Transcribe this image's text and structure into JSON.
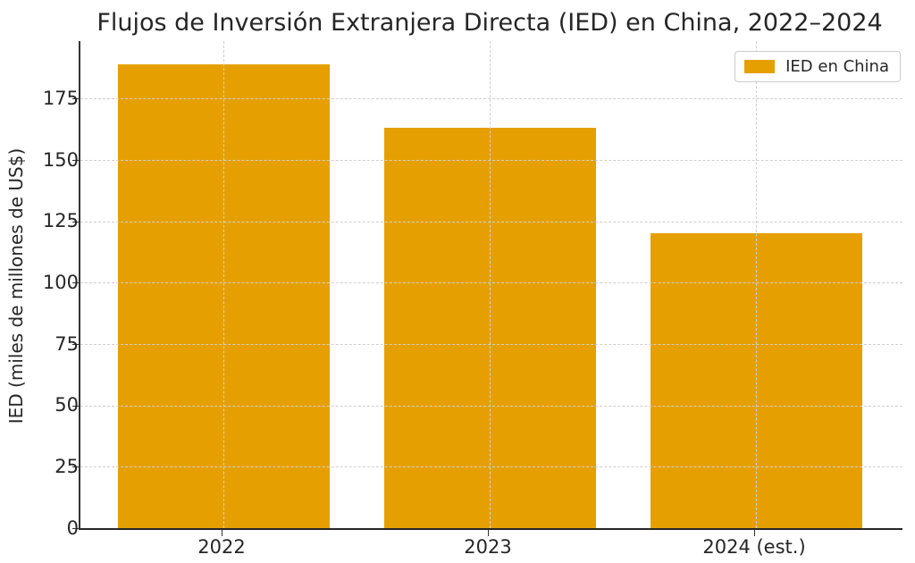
{
  "chart_data": {
    "type": "bar",
    "title": "Flujos de Inversión Extranjera Directa (IED) en China, 2022–2024",
    "ylabel": "IED (miles de millones de US$)",
    "xlabel": "",
    "categories": [
      "2022",
      "2023",
      "2024 (est.)"
    ],
    "values": [
      189,
      163,
      120
    ],
    "yticks": [
      0,
      25,
      50,
      75,
      100,
      125,
      150,
      175
    ],
    "ylim": [
      0,
      198.45
    ],
    "grid": true,
    "grid_style": "dashed",
    "legend": {
      "label": "IED en China",
      "position": "upper right"
    },
    "colors": {
      "bar": "#E5A000",
      "grid": "#cfcfcf",
      "spine": "#333333",
      "text": "#262626"
    }
  }
}
